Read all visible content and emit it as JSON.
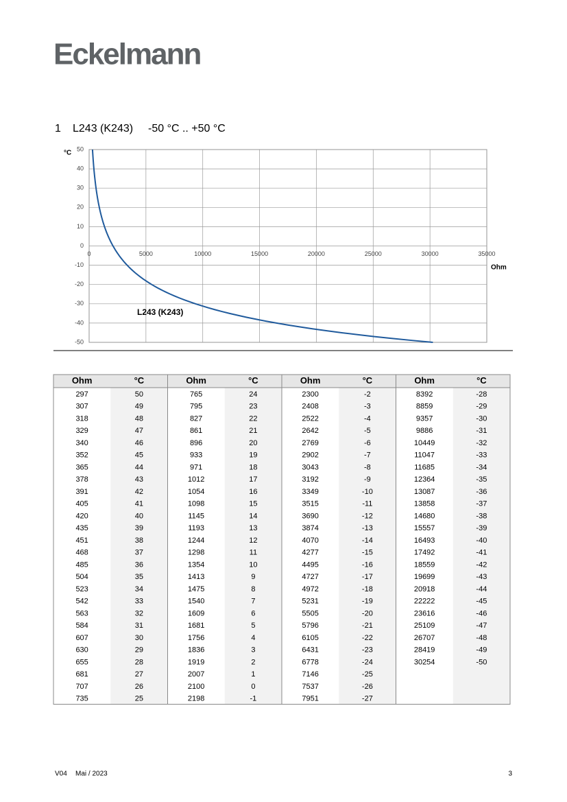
{
  "header": {
    "logo": "Eckelmann"
  },
  "heading": {
    "number": "1",
    "title": "L243 (K243)",
    "range": "-50 °C .. +50 °C"
  },
  "chart_data": {
    "type": "line",
    "y_label": "°C",
    "x_label": "Ohm",
    "x": [
      297,
      307,
      318,
      329,
      340,
      352,
      365,
      378,
      391,
      405,
      420,
      435,
      451,
      468,
      485,
      504,
      523,
      542,
      563,
      584,
      607,
      630,
      655,
      681,
      707,
      735,
      765,
      795,
      827,
      861,
      896,
      933,
      971,
      1012,
      1054,
      1098,
      1145,
      1193,
      1244,
      1298,
      1354,
      1413,
      1475,
      1540,
      1609,
      1681,
      1756,
      1836,
      1919,
      2007,
      2100,
      2198,
      2300,
      2408,
      2522,
      2642,
      2769,
      2902,
      3043,
      3192,
      3349,
      3515,
      3690,
      3874,
      4070,
      4277,
      4495,
      4727,
      4972,
      5231,
      5505,
      5796,
      6105,
      6431,
      6778,
      7146,
      7537,
      7951,
      8392,
      8859,
      9357,
      9886,
      10449,
      11047,
      11685,
      12364,
      13087,
      13858,
      14680,
      15557,
      16493,
      17492,
      18559,
      19699,
      20918,
      22222,
      23616,
      25109,
      26707,
      28419,
      30254
    ],
    "series": [
      {
        "name": "L243 (K243)",
        "color": "#1f5a9c",
        "values": [
          50,
          49,
          48,
          47,
          46,
          45,
          44,
          43,
          42,
          41,
          40,
          39,
          38,
          37,
          36,
          35,
          34,
          33,
          32,
          31,
          30,
          29,
          28,
          27,
          26,
          25,
          24,
          23,
          22,
          21,
          20,
          19,
          18,
          17,
          16,
          15,
          14,
          13,
          12,
          11,
          10,
          9,
          8,
          7,
          6,
          5,
          4,
          3,
          2,
          1,
          0,
          -1,
          -2,
          -3,
          -4,
          -5,
          -6,
          -7,
          -8,
          -9,
          -10,
          -11,
          -12,
          -13,
          -14,
          -15,
          -16,
          -17,
          -18,
          -19,
          -20,
          -21,
          -22,
          -23,
          -24,
          -25,
          -26,
          -27,
          -28,
          -29,
          -30,
          -31,
          -32,
          -33,
          -34,
          -35,
          -36,
          -37,
          -38,
          -39,
          -40,
          -41,
          -42,
          -43,
          -44,
          -45,
          -46,
          -47,
          -48,
          -49,
          -50
        ]
      }
    ],
    "xlim": [
      0,
      35000
    ],
    "xticks": [
      0,
      5000,
      10000,
      15000,
      20000,
      25000,
      30000,
      35000
    ],
    "ylim": [
      -50,
      50
    ],
    "yticks": [
      -50,
      -40,
      -30,
      -20,
      -10,
      0,
      10,
      20,
      30,
      40,
      50
    ],
    "grid": true
  },
  "table": {
    "headers": [
      "Ohm",
      "°C"
    ]
  },
  "footer": {
    "version": "V04",
    "date": "Mai / 2023",
    "page": "3"
  }
}
